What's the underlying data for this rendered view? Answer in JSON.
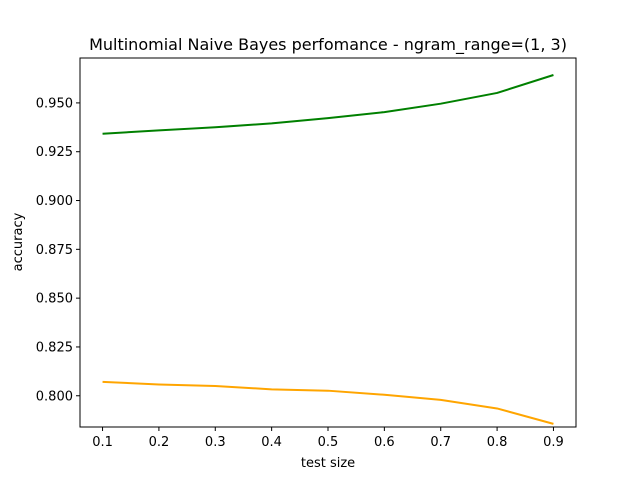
{
  "chart_data": {
    "type": "line",
    "title": "Multinomial Naive Bayes perfomance - ngram_range=(1, 3)",
    "xlabel": "test size",
    "ylabel": "accuracy",
    "x": [
      0.1,
      0.2,
      0.3,
      0.4,
      0.5,
      0.6,
      0.7,
      0.8,
      0.9
    ],
    "xlim": [
      0.06,
      0.94
    ],
    "ylim": [
      0.784,
      0.973
    ],
    "xticks": [
      "0.1",
      "0.2",
      "0.3",
      "0.4",
      "0.5",
      "0.6",
      "0.7",
      "0.8",
      "0.9"
    ],
    "yticks": [
      "0.800",
      "0.825",
      "0.850",
      "0.875",
      "0.900",
      "0.925",
      "0.950"
    ],
    "grid": false,
    "series": [
      {
        "color": "#008000",
        "values": [
          0.9342,
          0.9359,
          0.9375,
          0.9395,
          0.9422,
          0.9453,
          0.9496,
          0.9551,
          0.9643
        ]
      },
      {
        "color": "#ffa500",
        "values": [
          0.8071,
          0.8058,
          0.805,
          0.8033,
          0.8026,
          0.8005,
          0.7979,
          0.7935,
          0.7856
        ]
      }
    ]
  }
}
